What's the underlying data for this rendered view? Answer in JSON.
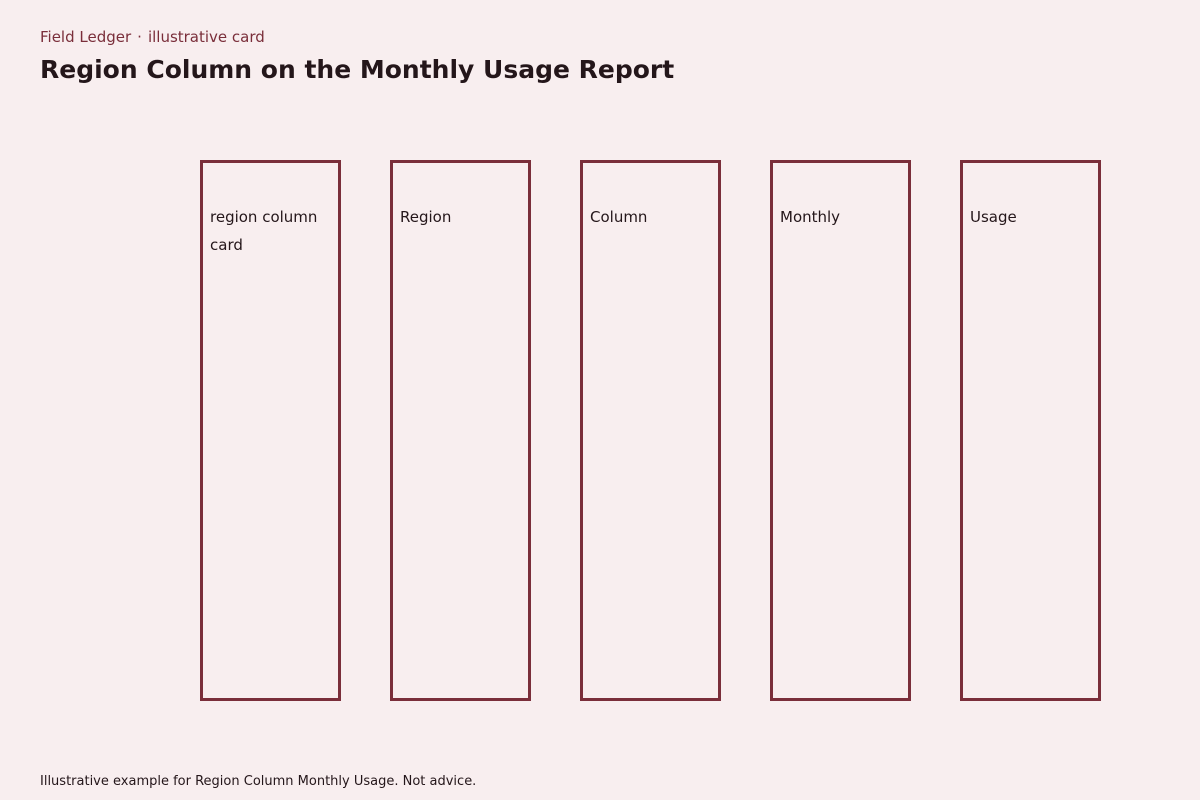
{
  "header": {
    "kicker_left": "Field Ledger",
    "kicker_sep": "·",
    "kicker_right": "illustrative card",
    "title": "Region Column on the Monthly Usage Report"
  },
  "columns": [
    {
      "label": "region column card"
    },
    {
      "label": "Region"
    },
    {
      "label": "Column"
    },
    {
      "label": "Monthly"
    },
    {
      "label": "Usage"
    }
  ],
  "footer": {
    "note": "Illustrative example for Region Column Monthly Usage. Not advice."
  },
  "colors": {
    "background": "#f8eeef",
    "accent": "#7a2e3a",
    "text": "#24161a"
  }
}
